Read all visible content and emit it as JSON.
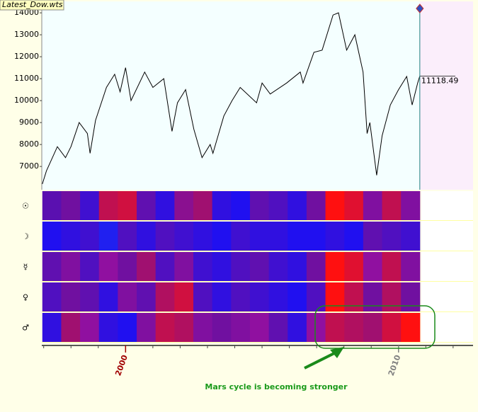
{
  "window_title": "Latest_Dow.wts",
  "chart_data": {
    "type": "line",
    "x": [
      1996.95,
      1997.1,
      1997.5,
      1997.8,
      1998.0,
      1998.3,
      1998.6,
      1998.7,
      1998.9,
      1999.3,
      1999.6,
      1999.8,
      2000.0,
      2000.2,
      2000.7,
      2001.0,
      2001.4,
      2001.7,
      2001.9,
      2002.2,
      2002.5,
      2002.8,
      2003.1,
      2003.2,
      2003.6,
      2003.9,
      2004.2,
      2004.8,
      2005.0,
      2005.3,
      2005.9,
      2006.4,
      2006.5,
      2006.9,
      2007.2,
      2007.6,
      2007.8,
      2008.1,
      2008.4,
      2008.7,
      2008.85,
      2008.95,
      2009.2,
      2009.4,
      2009.7,
      2010.0,
      2010.3,
      2010.5,
      2010.7,
      2010.78
    ],
    "values": [
      6200,
      6800,
      7900,
      7400,
      7900,
      9000,
      8500,
      7600,
      9100,
      10600,
      11200,
      10400,
      11500,
      10000,
      11300,
      10600,
      11000,
      8600,
      9900,
      10500,
      8700,
      7400,
      8000,
      7600,
      9300,
      10000,
      10600,
      9900,
      10800,
      10300,
      10800,
      11300,
      10800,
      12200,
      12300,
      13900,
      14000,
      12300,
      13000,
      11300,
      8500,
      9000,
      6600,
      8400,
      9800,
      10500,
      11100,
      9800,
      10800,
      11118.49
    ],
    "color": "#000000",
    "ylim": [
      5940,
      14520
    ],
    "yticks": [
      7000,
      8000,
      9000,
      10000,
      11000,
      12000,
      13000,
      14000
    ],
    "xlim": [
      1996.93,
      2012.73
    ],
    "xticks": [
      2000,
      2010
    ],
    "xtick_colors": [
      "#a00000",
      "#808080"
    ],
    "xminorticks": [
      1997,
      1998,
      1999,
      2001,
      2002,
      2003,
      2004,
      2005,
      2006,
      2007,
      2008,
      2009,
      2011,
      2012
    ],
    "strips": [
      {
        "symbol": "☉",
        "colors": [
          "#5a10b0",
          "#7010a0",
          "#4010d0",
          "#c01050",
          "#d01040",
          "#6010b0",
          "#3010e0",
          "#8a1090",
          "#a01070",
          "#3010e0",
          "#2010f0",
          "#6010b0",
          "#5010c0",
          "#3010e0",
          "#7010a0",
          "#ff1010",
          "#e01030",
          "#8010a0",
          "#c01050",
          "#8010a0"
        ]
      },
      {
        "symbol": "☽",
        "colors": [
          "#2010f0",
          "#3010e0",
          "#4010d0",
          "#2020f0",
          "#5010c0",
          "#3010e0",
          "#5010c0",
          "#4010d0",
          "#3010e0",
          "#2010f0",
          "#4010d0",
          "#3010e0",
          "#3010e0",
          "#2010f0",
          "#2010f0",
          "#3010e0",
          "#2010f0",
          "#6010b0",
          "#5010c0",
          "#4010d0"
        ]
      },
      {
        "symbol": "☿",
        "colors": [
          "#6010b0",
          "#8010a0",
          "#5010c0",
          "#9010a0",
          "#7010a0",
          "#a01070",
          "#5010c0",
          "#8010a0",
          "#4010d0",
          "#3010e0",
          "#5010c0",
          "#6010b0",
          "#4010d0",
          "#3010e0",
          "#7010a0",
          "#ff1010",
          "#e01030",
          "#9010a0",
          "#c01050",
          "#8010a0"
        ]
      },
      {
        "symbol": "♀",
        "colors": [
          "#5010c0",
          "#7010a0",
          "#6010b0",
          "#3010e0",
          "#8010a0",
          "#6010b0",
          "#b01060",
          "#d01040",
          "#5010c0",
          "#3010e0",
          "#5010c0",
          "#4010d0",
          "#3010e0",
          "#2010f0",
          "#5010c0",
          "#ff1010",
          "#c01050",
          "#7010a0",
          "#b01060",
          "#7010a0"
        ]
      },
      {
        "symbol": "♂",
        "colors": [
          "#3010e0",
          "#a01070",
          "#9010a0",
          "#3010e0",
          "#2010f0",
          "#8010a0",
          "#c01050",
          "#b01060",
          "#8010a0",
          "#7010a0",
          "#8010a0",
          "#9010a0",
          "#6010b0",
          "#3010e0",
          "#9010a0",
          "#c01050",
          "#b01060",
          "#a01070",
          "#d01040",
          "#ff1010"
        ]
      }
    ],
    "annotation": "Mars cycle is becoming stronger"
  }
}
